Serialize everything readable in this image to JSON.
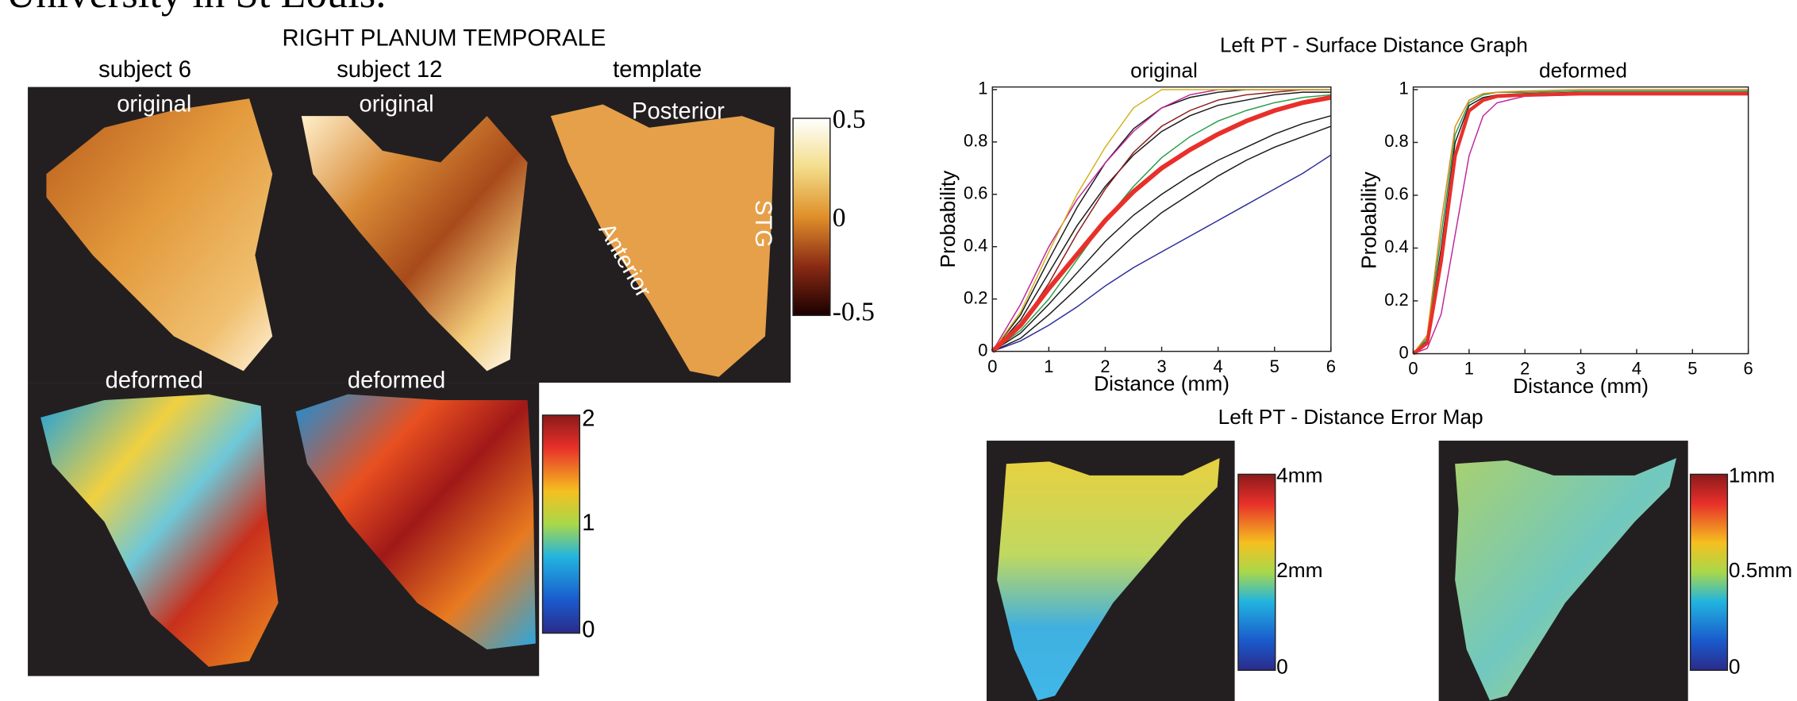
{
  "header": {
    "text": "University in St Louis."
  },
  "left_panel": {
    "title": "RIGHT PLANUM TEMPORALE",
    "columns": [
      "subject 6",
      "subject 12",
      "template"
    ],
    "top_labels": [
      "original",
      "original"
    ],
    "bottom_labels": [
      "deformed",
      "deformed"
    ],
    "template_labels": [
      "Posterior",
      "Anterior",
      "STG"
    ],
    "top_colorbar": [
      "0.5",
      "0",
      "-0.5"
    ],
    "bottom_colorbar": [
      "2",
      "1",
      "0"
    ]
  },
  "right_panel": {
    "title": "Left PT - Surface Distance Graph",
    "map_title": "Left PT - Distance Error Map",
    "left_colorbar": [
      "4mm",
      "2mm",
      "0"
    ],
    "right_colorbar": [
      "1mm",
      "0.5mm",
      "0"
    ]
  },
  "chart_data": [
    {
      "type": "line",
      "title": "original",
      "xlabel": "Distance (mm)",
      "ylabel": "Probability",
      "x": [
        0,
        0.5,
        1,
        1.5,
        2,
        2.5,
        3,
        3.5,
        4,
        4.5,
        5,
        5.5,
        6
      ],
      "series": [
        {
          "color": "#1a1a1a",
          "values": [
            0,
            0.07,
            0.18,
            0.3,
            0.42,
            0.52,
            0.6,
            0.67,
            0.73,
            0.78,
            0.83,
            0.87,
            0.9
          ]
        },
        {
          "color": "#1a1a1a",
          "values": [
            0,
            0.05,
            0.14,
            0.24,
            0.34,
            0.44,
            0.53,
            0.6,
            0.67,
            0.73,
            0.78,
            0.82,
            0.86
          ]
        },
        {
          "color": "#1a1a1a",
          "values": [
            0,
            0.14,
            0.35,
            0.55,
            0.72,
            0.85,
            0.93,
            0.97,
            0.99,
            1,
            1,
            1,
            1
          ]
        },
        {
          "color": "#1a1a1a",
          "values": [
            0,
            0.12,
            0.3,
            0.48,
            0.63,
            0.75,
            0.84,
            0.9,
            0.94,
            0.96,
            0.98,
            0.99,
            0.99
          ]
        },
        {
          "color": "#2a9d4a",
          "values": [
            0,
            0.08,
            0.2,
            0.35,
            0.5,
            0.63,
            0.74,
            0.82,
            0.88,
            0.92,
            0.95,
            0.97,
            0.98
          ]
        },
        {
          "color": "#8b1a1a",
          "values": [
            0,
            0.1,
            0.26,
            0.45,
            0.62,
            0.76,
            0.86,
            0.92,
            0.96,
            0.98,
            0.99,
            1,
            1
          ]
        },
        {
          "color": "#c0249a",
          "values": [
            0,
            0.18,
            0.4,
            0.58,
            0.72,
            0.84,
            0.93,
            0.98,
            1,
            1,
            1,
            1,
            1
          ]
        },
        {
          "color": "#d4b21a",
          "values": [
            0,
            0.15,
            0.38,
            0.6,
            0.78,
            0.93,
            1,
            1,
            1,
            1,
            1,
            1,
            1
          ]
        },
        {
          "color": "#2b2b9c",
          "values": [
            0,
            0.04,
            0.1,
            0.17,
            0.25,
            0.32,
            0.38,
            0.44,
            0.5,
            0.56,
            0.62,
            0.68,
            0.75
          ]
        },
        {
          "color": "#e8302a",
          "width": 4,
          "values": [
            0,
            0.1,
            0.24,
            0.37,
            0.5,
            0.61,
            0.7,
            0.77,
            0.83,
            0.88,
            0.92,
            0.95,
            0.97
          ]
        }
      ],
      "xlim": [
        0,
        6
      ],
      "ylim": [
        0,
        1.01
      ],
      "xticks": [
        0,
        1,
        2,
        3,
        4,
        5,
        6
      ],
      "yticks": [
        0,
        0.2,
        0.4,
        0.6,
        0.8,
        1
      ]
    },
    {
      "type": "line",
      "title": "deformed",
      "xlabel": "Distance (mm)",
      "ylabel": "Probability",
      "x": [
        0,
        0.25,
        0.5,
        0.75,
        1,
        1.25,
        1.5,
        2,
        3,
        4,
        5,
        6
      ],
      "series": [
        {
          "color": "#1a1a1a",
          "values": [
            0,
            0.05,
            0.4,
            0.8,
            0.94,
            0.97,
            0.98,
            0.985,
            0.99,
            0.99,
            0.99,
            0.99
          ]
        },
        {
          "color": "#2a9d4a",
          "values": [
            0,
            0.06,
            0.45,
            0.83,
            0.95,
            0.98,
            0.99,
            0.99,
            0.995,
            0.995,
            0.995,
            0.995
          ]
        },
        {
          "color": "#e08a1a",
          "values": [
            0,
            0.07,
            0.5,
            0.86,
            0.96,
            0.985,
            0.99,
            0.995,
            1,
            1,
            1,
            1
          ]
        },
        {
          "color": "#c0249a",
          "values": [
            0,
            0.02,
            0.15,
            0.45,
            0.75,
            0.9,
            0.95,
            0.975,
            0.98,
            0.98,
            0.98,
            0.98
          ]
        },
        {
          "color": "#e8302a",
          "width": 3,
          "values": [
            0,
            0.04,
            0.35,
            0.75,
            0.92,
            0.96,
            0.975,
            0.98,
            0.985,
            0.985,
            0.985,
            0.985
          ]
        }
      ],
      "xlim": [
        0,
        6
      ],
      "ylim": [
        0,
        1.01
      ],
      "xticks": [
        0,
        1,
        2,
        3,
        4,
        5,
        6
      ],
      "yticks": [
        0,
        0.2,
        0.4,
        0.6,
        0.8,
        1
      ]
    }
  ]
}
